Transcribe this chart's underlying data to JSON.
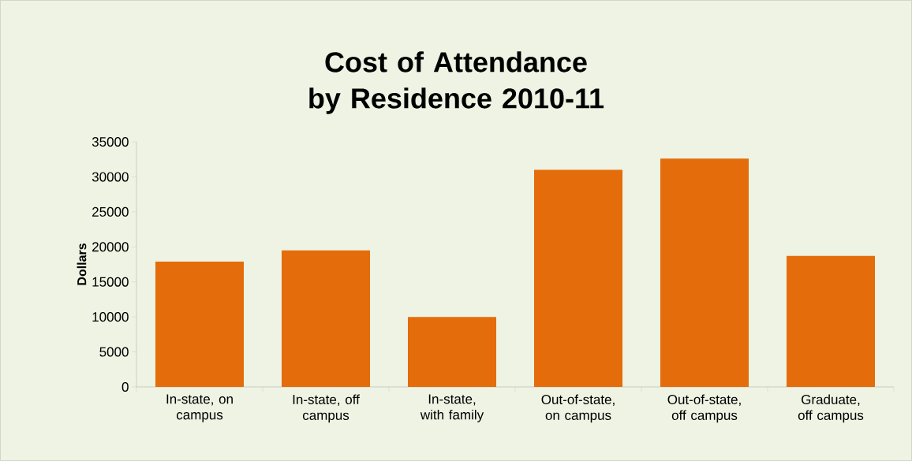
{
  "chart_data": {
    "type": "bar",
    "title": "Cost of Attendance by Residence 2010-11",
    "ylabel": "Dollars",
    "categories": [
      "In-state, on campus",
      "In-state, off campus",
      "In-state, with family",
      "Out-of-state, on campus",
      "Out-of-state, off campus",
      "Graduate, off campus"
    ],
    "values": [
      17900,
      19500,
      10000,
      31000,
      32600,
      18700
    ],
    "color": "#e46c0a",
    "ylim": [
      0,
      35000
    ],
    "yticks": [
      0,
      5000,
      10000,
      15000,
      20000,
      25000,
      30000,
      35000
    ],
    "grid": false
  }
}
